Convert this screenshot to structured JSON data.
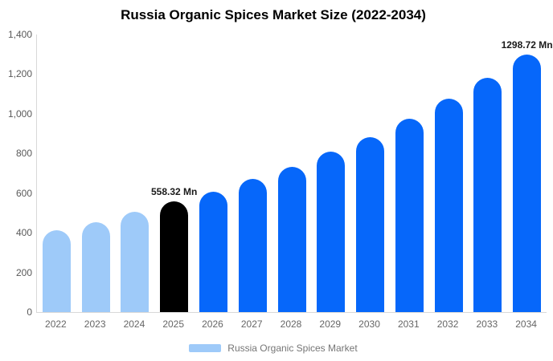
{
  "title": "Russia Organic Spices Market Size (2022-2034)",
  "legend": {
    "label": "Russia Organic Spices Market",
    "swatch_color": "#9ECAF9"
  },
  "colors": {
    "light_blue": "#9ECAF9",
    "blue": "#0667FA",
    "black": "#000000",
    "axis_line": "#D8D8D8",
    "y_label": "#595959",
    "x_label": "#666666",
    "legend_text": "#757575",
    "data_label": "#1A1A1A",
    "background": "#FFFFFF"
  },
  "chart_data": {
    "type": "bar",
    "title": "Russia Organic Spices Market Size (2022-2034)",
    "unit": "Mn",
    "ylim": [
      0,
      1400
    ],
    "grid": false,
    "legend_position": "bottom",
    "series_name": "Russia Organic Spices Market",
    "yticks": [
      {
        "value": 0,
        "label": "0"
      },
      {
        "value": 200,
        "label": "200"
      },
      {
        "value": 400,
        "label": "400"
      },
      {
        "value": 600,
        "label": "600"
      },
      {
        "value": 800,
        "label": "800"
      },
      {
        "value": 1000,
        "label": "1,000"
      },
      {
        "value": 1200,
        "label": "1,200"
      },
      {
        "value": 1400,
        "label": "1,400"
      }
    ],
    "bars": [
      {
        "year": "2022",
        "value": 412,
        "color_key": "light_blue",
        "data_label": ""
      },
      {
        "year": "2023",
        "value": 453,
        "color_key": "light_blue",
        "data_label": ""
      },
      {
        "year": "2024",
        "value": 505,
        "color_key": "light_blue",
        "data_label": ""
      },
      {
        "year": "2025",
        "value": 558.32,
        "color_key": "black",
        "data_label": "558.32 Mn"
      },
      {
        "year": "2026",
        "value": 608,
        "color_key": "blue",
        "data_label": ""
      },
      {
        "year": "2027",
        "value": 672,
        "color_key": "blue",
        "data_label": ""
      },
      {
        "year": "2028",
        "value": 733,
        "color_key": "blue",
        "data_label": ""
      },
      {
        "year": "2029",
        "value": 809,
        "color_key": "blue",
        "data_label": ""
      },
      {
        "year": "2030",
        "value": 884,
        "color_key": "blue",
        "data_label": ""
      },
      {
        "year": "2031",
        "value": 975,
        "color_key": "blue",
        "data_label": ""
      },
      {
        "year": "2032",
        "value": 1076,
        "color_key": "blue",
        "data_label": ""
      },
      {
        "year": "2033",
        "value": 1180,
        "color_key": "blue",
        "data_label": ""
      },
      {
        "year": "2034",
        "value": 1298.72,
        "color_key": "blue",
        "data_label": "1298.72 Mn"
      }
    ]
  }
}
